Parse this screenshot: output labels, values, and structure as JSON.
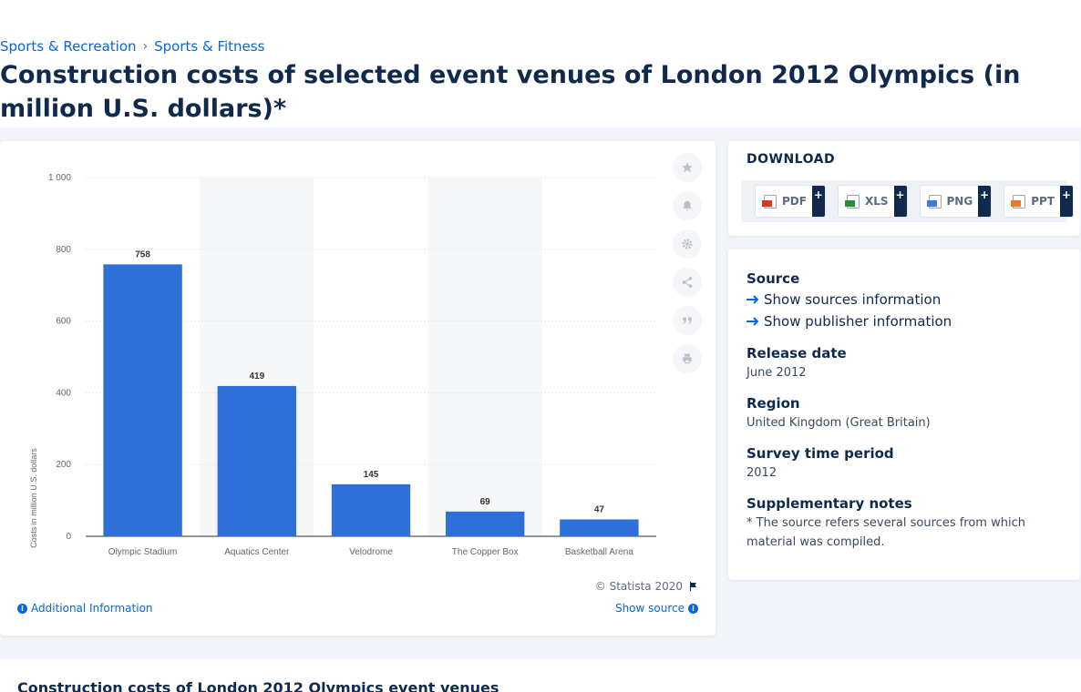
{
  "breadcrumb": [
    "Sports & Recreation",
    "Sports & Fitness"
  ],
  "page_title": "Construction costs of selected event venues of London 2012 Olympics (in million U.S. dollars)*",
  "chart_data": {
    "type": "bar",
    "categories": [
      "Olympic Stadium",
      "Aquatics Center",
      "Velodrome",
      "The Copper Box",
      "Basketball Arena"
    ],
    "values": [
      758,
      419,
      145,
      69,
      47
    ],
    "data_labels": [
      "758",
      "419",
      "145",
      "69",
      "47"
    ],
    "ylabel": "Costs in million U.S. dollars",
    "ylim": [
      0,
      1000
    ],
    "yticks": [
      0,
      200,
      400,
      600,
      800,
      1000
    ],
    "ytick_labels": [
      "0",
      "200",
      "400",
      "600",
      "800",
      "1 000"
    ],
    "grid": true,
    "bar_color": "#2f6fd8",
    "band_color": "#f6f7f9"
  },
  "chart_footer": {
    "copyright": "© Statista 2020",
    "additional_info": "Additional Information",
    "show_source": "Show source"
  },
  "download": {
    "title": "DOWNLOAD",
    "buttons": [
      {
        "label": "PDF",
        "color": "#d9362b"
      },
      {
        "label": "XLS",
        "color": "#2e8b3e"
      },
      {
        "label": "PNG",
        "color": "#3d7bd9"
      },
      {
        "label": "PPT",
        "color": "#e5792f"
      }
    ],
    "plus": "+"
  },
  "info": {
    "source_head": "Source",
    "show_sources": "Show sources information",
    "show_publisher": "Show publisher information",
    "release_head": "Release date",
    "release_val": "June 2012",
    "region_head": "Region",
    "region_val": "United Kingdom (Great Britain)",
    "survey_head": "Survey time period",
    "survey_val": "2012",
    "notes_head": "Supplementary notes",
    "notes_val": "* The source refers several sources from which material was compiled."
  },
  "bottom_title": "Construction costs of London 2012 Olympics event venues"
}
